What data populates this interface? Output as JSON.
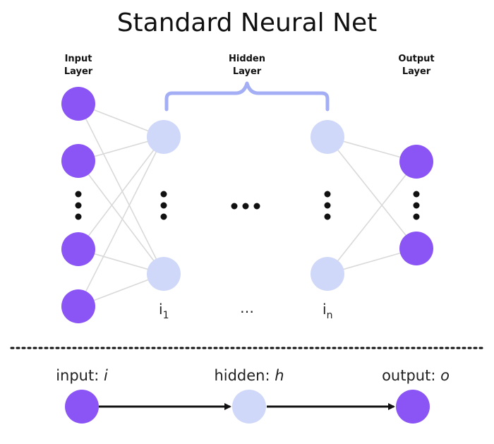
{
  "colors": {
    "input_node": "#8b55f5",
    "hidden_node": "#cfd8f8",
    "output_node": "#8b55f5",
    "edge": "#d9d9d9",
    "brace": "#a3aef4"
  },
  "title": "Standard Neural Net",
  "layers": {
    "input_label_1": "Input",
    "input_label_2": "Layer",
    "hidden_label_1": "Hidden",
    "hidden_label_2": "Layer",
    "output_label_1": "Output",
    "output_label_2": "Layer"
  },
  "hidden_indices": {
    "first_base": "i",
    "first_sub": "1",
    "middle": "…",
    "last_base": "i",
    "last_sub": "n"
  },
  "legend": {
    "input_text": "input: ",
    "input_var": "i",
    "hidden_text": "hidden: ",
    "hidden_var": "h",
    "output_text": "output: ",
    "output_var": "o"
  }
}
